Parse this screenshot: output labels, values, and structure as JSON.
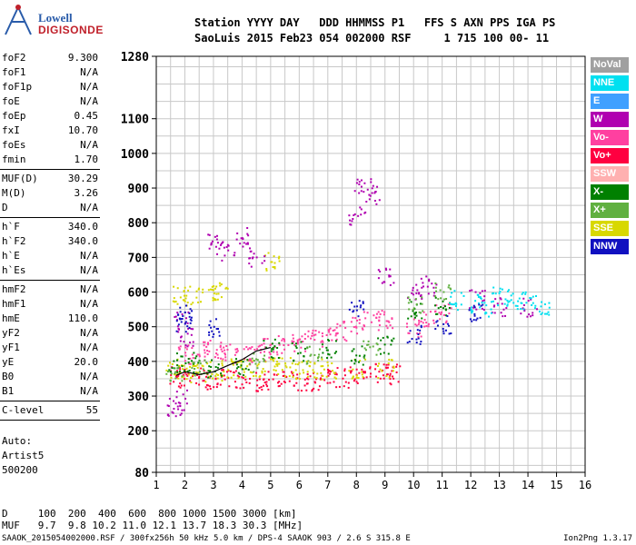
{
  "logo": {
    "line1": "Lowell",
    "line2": "DIGISONDE"
  },
  "header": {
    "row1": "Station YYYY DAY   DDD HHMMSS P1   FFS S AXN PPS IGA PS",
    "row2": "SaoLuis 2015 Feb23 054 002000 RSF     1 715 100 00- 11"
  },
  "params_top": [
    {
      "label": "foF2",
      "value": "9.300"
    },
    {
      "label": "foF1",
      "value": "N/A"
    },
    {
      "label": "foF1p",
      "value": "N/A"
    },
    {
      "label": "foE",
      "value": "N/A"
    },
    {
      "label": "foEp",
      "value": "0.45"
    },
    {
      "label": "fxI",
      "value": "10.70"
    },
    {
      "label": "foEs",
      "value": "N/A"
    },
    {
      "label": "fmin",
      "value": "1.70"
    }
  ],
  "params_muf": [
    {
      "label": "MUF(D)",
      "value": "30.29"
    },
    {
      "label": "M(D)",
      "value": "3.26"
    },
    {
      "label": "D",
      "value": "N/A"
    }
  ],
  "params_h": [
    {
      "label": "h`F",
      "value": "340.0"
    },
    {
      "label": "h`F2",
      "value": "340.0"
    },
    {
      "label": "h`E",
      "value": "N/A"
    },
    {
      "label": "h`Es",
      "value": "N/A"
    }
  ],
  "params_profile": [
    {
      "label": "hmF2",
      "value": "N/A"
    },
    {
      "label": "hmF1",
      "value": "N/A"
    },
    {
      "label": "hmE",
      "value": "110.0"
    },
    {
      "label": "yF2",
      "value": "N/A"
    },
    {
      "label": "yF1",
      "value": "N/A"
    },
    {
      "label": "yE",
      "value": "20.0"
    },
    {
      "label": "B0",
      "value": "N/A"
    },
    {
      "label": "B1",
      "value": "N/A"
    }
  ],
  "clevel": {
    "label": "C-level",
    "value": "55"
  },
  "autoscale": {
    "line1": "Auto:",
    "line2": "Artist5",
    "line3": "500200"
  },
  "legend": [
    {
      "label": "NoVal",
      "color": "#a0a0a0"
    },
    {
      "label": "NNE",
      "color": "#00e0f0"
    },
    {
      "label": "E",
      "color": "#40a0ff"
    },
    {
      "label": "W",
      "color": "#b000b0"
    },
    {
      "label": "Vo-",
      "color": "#ff40a0"
    },
    {
      "label": "Vo+",
      "color": "#ff0040"
    },
    {
      "label": "SSW",
      "color": "#ffb0b0"
    },
    {
      "label": "X-",
      "color": "#008000"
    },
    {
      "label": "X+",
      "color": "#60b040"
    },
    {
      "label": "SSE",
      "color": "#d8d800"
    },
    {
      "label": "NNW",
      "color": "#1010c0"
    }
  ],
  "bottom": {
    "d_row": "D     100  200  400  600  800 1000 1500 3000 [km]",
    "muf_row": "MUF   9.7  9.8 10.2 11.0 12.1 13.7 18.3 30.3 [MHz]"
  },
  "footer": {
    "left": "SAAOK_2015054002000.RSF / 300fx256h 50 kHz 5.0 km / DPS-4 SAAOK 903 / 2.6 S 315.8 E",
    "right": "Ion2Png 1.3.17"
  },
  "chart_data": {
    "type": "scatter",
    "title": "",
    "xlabel": "",
    "ylabel": "",
    "xlim": [
      1,
      16
    ],
    "x_ticks": [
      "1",
      "2",
      "3",
      "4",
      "5",
      "6",
      "7",
      "8",
      "9",
      "10",
      "11",
      "12",
      "13",
      "14",
      "15",
      "16"
    ],
    "y_ticks": [
      "80",
      "200",
      "300",
      "400",
      "500",
      "600",
      "700",
      "800",
      "900",
      "1000",
      "1100",
      "1280"
    ],
    "y_tick_values": [
      80,
      200,
      300,
      400,
      500,
      600,
      700,
      800,
      900,
      1000,
      1100,
      1280
    ],
    "ylim": [
      80,
      1280
    ],
    "grid": true,
    "series": [
      {
        "color": "#ff0040",
        "points": [
          [
            1.7,
            360
          ],
          [
            2.0,
            355
          ],
          [
            2.5,
            355
          ],
          [
            3.0,
            350
          ],
          [
            3.5,
            350
          ],
          [
            4.0,
            350
          ],
          [
            4.5,
            345
          ],
          [
            5.0,
            345
          ],
          [
            5.5,
            345
          ],
          [
            6.0,
            345
          ],
          [
            6.5,
            345
          ],
          [
            7.0,
            350
          ],
          [
            7.5,
            355
          ],
          [
            8.0,
            365
          ],
          [
            8.5,
            370
          ],
          [
            9.0,
            370
          ],
          [
            9.3,
            365
          ]
        ]
      },
      {
        "color": "#d8d800",
        "points": [
          [
            1.6,
            380
          ],
          [
            2.0,
            370
          ],
          [
            2.5,
            370
          ],
          [
            3.0,
            375
          ],
          [
            3.5,
            380
          ],
          [
            4.0,
            380
          ],
          [
            4.5,
            385
          ],
          [
            5.0,
            390
          ],
          [
            5.5,
            385
          ],
          [
            6.0,
            380
          ],
          [
            6.5,
            380
          ],
          [
            7.0,
            375
          ],
          [
            8.0,
            380
          ],
          [
            9.0,
            380
          ],
          [
            1.8,
            590
          ],
          [
            2.2,
            590
          ],
          [
            2.8,
            595
          ],
          [
            3.2,
            600
          ],
          [
            5.0,
            690
          ]
        ]
      },
      {
        "color": "#ff40a0",
        "points": [
          [
            2.0,
            420
          ],
          [
            2.5,
            430
          ],
          [
            3.0,
            440
          ],
          [
            3.5,
            430
          ],
          [
            4.0,
            420
          ],
          [
            4.5,
            425
          ],
          [
            5.0,
            440
          ],
          [
            5.5,
            450
          ],
          [
            6.0,
            460
          ],
          [
            6.5,
            470
          ],
          [
            7.0,
            480
          ],
          [
            7.5,
            490
          ],
          [
            8.0,
            500
          ],
          [
            8.5,
            520
          ],
          [
            9.0,
            520
          ],
          [
            10.0,
            500
          ],
          [
            10.5,
            520
          ],
          [
            11.0,
            540
          ]
        ]
      },
      {
        "color": "#b000b0",
        "points": [
          [
            1.6,
            270
          ],
          [
            1.8,
            290
          ],
          [
            1.9,
            520
          ],
          [
            2.0,
            470
          ],
          [
            3.0,
            740
          ],
          [
            3.5,
            720
          ],
          [
            4.0,
            760
          ],
          [
            4.5,
            700
          ],
          [
            8.0,
            820
          ],
          [
            8.2,
            900
          ],
          [
            8.5,
            880
          ],
          [
            9.0,
            650
          ],
          [
            10.0,
            600
          ],
          [
            10.5,
            620
          ],
          [
            12.2,
            580
          ],
          [
            13.0,
            560
          ],
          [
            14.0,
            555
          ]
        ]
      },
      {
        "color": "#008000",
        "points": [
          [
            1.7,
            400
          ],
          [
            2.2,
            400
          ],
          [
            3.0,
            380
          ],
          [
            4.0,
            390
          ],
          [
            5.0,
            440
          ],
          [
            6.0,
            430
          ],
          [
            7.0,
            440
          ],
          [
            8.0,
            420
          ],
          [
            9.0,
            450
          ],
          [
            10.0,
            550
          ],
          [
            11.0,
            560
          ]
        ]
      },
      {
        "color": "#00e0f0",
        "points": [
          [
            12.2,
            570
          ],
          [
            12.5,
            560
          ],
          [
            13.0,
            590
          ],
          [
            13.5,
            580
          ],
          [
            14.0,
            575
          ],
          [
            14.5,
            560
          ],
          [
            11.5,
            580
          ]
        ]
      },
      {
        "color": "#1010c0",
        "points": [
          [
            1.9,
            500
          ],
          [
            2.0,
            540
          ],
          [
            3.0,
            500
          ],
          [
            8.0,
            560
          ],
          [
            10.0,
            480
          ],
          [
            11.0,
            510
          ],
          [
            12.2,
            540
          ]
        ]
      },
      {
        "color": "#60b040",
        "points": [
          [
            1.6,
            370
          ],
          [
            2.5,
            380
          ],
          [
            4.5,
            400
          ],
          [
            6.5,
            420
          ],
          [
            8.5,
            440
          ],
          [
            10.0,
            560
          ],
          [
            11.0,
            600
          ]
        ]
      }
    ],
    "trace": {
      "color": "#000000",
      "points": [
        [
          1.7,
          360
        ],
        [
          2.0,
          370
        ],
        [
          2.5,
          362
        ],
        [
          3.0,
          370
        ],
        [
          3.5,
          388
        ],
        [
          4.0,
          405
        ],
        [
          4.5,
          430
        ],
        [
          5.0,
          440
        ]
      ]
    }
  }
}
